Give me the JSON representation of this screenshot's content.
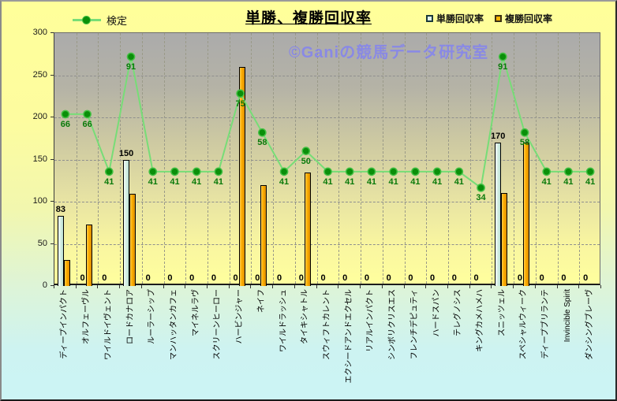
{
  "title": "単勝、複勝回収率",
  "watermark": "©Ganiの競馬データ研究室",
  "legend": {
    "kentei": "検定",
    "tansho": "単勝回収率",
    "fukusho": "複勝回収率"
  },
  "chart_data": {
    "type": "bar",
    "subtype": "bar+line combo",
    "title": "単勝、複勝回収率",
    "xlabel": "",
    "ylabel": "",
    "y_axis": {
      "min": 0,
      "max": 300,
      "step": 50
    },
    "grid": true,
    "legend_position": "top",
    "categories": [
      "ディープインパクト",
      "オルフェーヴル",
      "ワイルドイヴェント",
      "ロードカナロア",
      "ルーラーシップ",
      "マンハッタンカフェ",
      "マイネルラヴ",
      "スクリーンヒーロー",
      "ハービンジャー",
      "ネイフ",
      "ワイルドラッシュ",
      "タイキシャトル",
      "スウィフトカレント",
      "エクシードアンドエクセル",
      "リアルインパクト",
      "シンボリクリスエス",
      "フレンチデピュティ",
      "ハードスパン",
      "テレグノシス",
      "キングカメハメハ",
      "スニッツェル",
      "スペシャルウィーク",
      "ディープブリランテ",
      "Invincible Spirit",
      "ダンシングブレーヴ"
    ],
    "series": [
      {
        "name": "単勝回収率",
        "type": "bar",
        "labels_shown": true,
        "values": [
          83,
          0,
          0,
          150,
          0,
          0,
          0,
          0,
          0,
          0,
          0,
          0,
          0,
          0,
          0,
          0,
          0,
          0,
          0,
          0,
          170,
          0,
          0,
          0,
          0
        ],
        "color_from": "#F2FBF6",
        "color_to": "#B9DFD2"
      },
      {
        "name": "複勝回収率",
        "type": "bar",
        "labels_shown": false,
        "values": [
          31,
          73,
          0,
          109,
          0,
          0,
          0,
          0,
          260,
          120,
          0,
          135,
          0,
          0,
          0,
          0,
          0,
          0,
          0,
          0,
          110,
          170,
          0,
          0,
          0
        ],
        "color_from": "#FFCB4E",
        "color_to": "#DB8D00"
      },
      {
        "name": "検定",
        "type": "line",
        "labels_shown": true,
        "axis": "secondary-hidden",
        "values": [
          66,
          66,
          41,
          91,
          41,
          41,
          41,
          41,
          75,
          58,
          41,
          50,
          41,
          41,
          41,
          41,
          41,
          41,
          41,
          34,
          91,
          58,
          41,
          41,
          41
        ],
        "line_color": "#77DD77",
        "marker_color": "#0A8F0A"
      }
    ],
    "secondary_to_primary_mapping": {
      "slope": 2.7273,
      "intercept": 23.8
    }
  },
  "colors": {
    "plot_top": "#ABABAB",
    "plot_bottom": "#FFFF9E",
    "background_top": "#FFFF9A",
    "background_bottom": "#CCF4F5",
    "watermark": "#8282F0",
    "line_label": "#0A7A0A"
  }
}
